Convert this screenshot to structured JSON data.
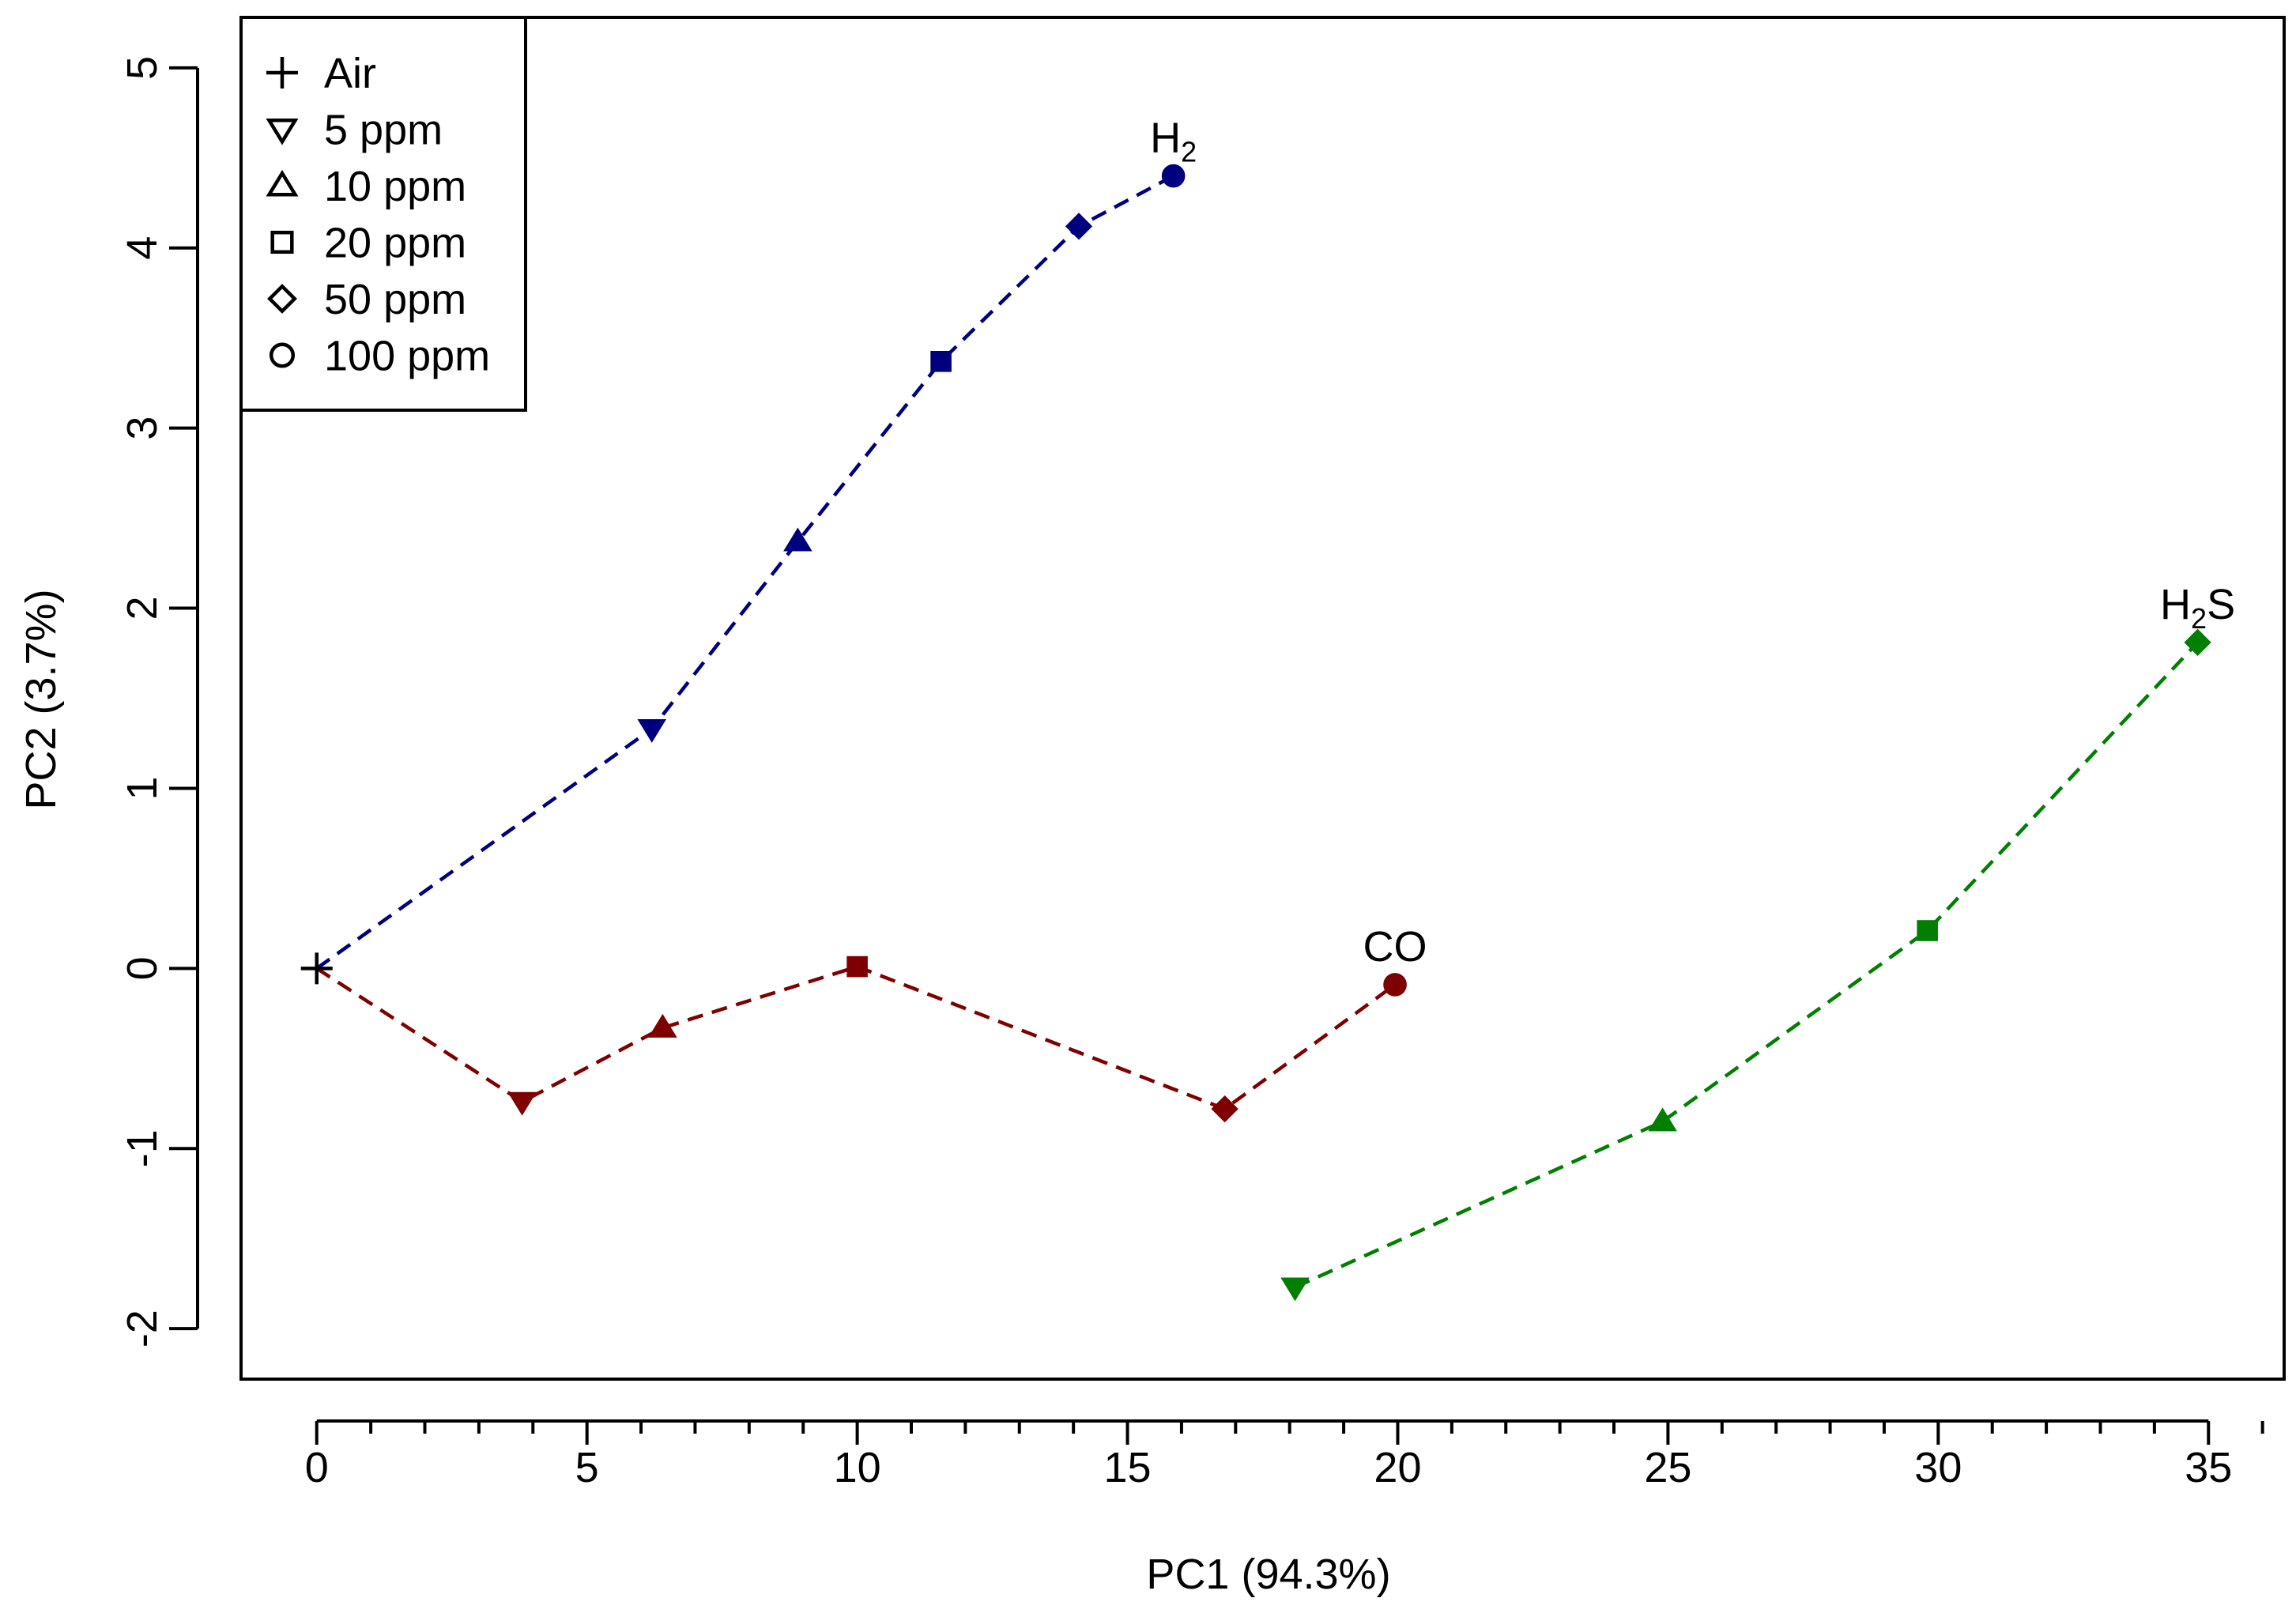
{
  "chart_data": {
    "type": "scatter",
    "title": "",
    "xlabel": "PC1 (94.3%)",
    "ylabel": "PC2 (3.7%)",
    "xlim": [
      -1.4,
      36.4
    ],
    "ylim": [
      -2.28,
      5.28
    ],
    "xticks": [
      0,
      5,
      10,
      15,
      20,
      25,
      30,
      35
    ],
    "yticks": [
      -2,
      -1,
      0,
      1,
      2,
      3,
      4,
      5
    ],
    "xminor_step": 1,
    "x_tick_labels": [
      "0",
      "5",
      "10",
      "15",
      "20",
      "25",
      "30",
      "35"
    ],
    "y_tick_labels": [
      "-2",
      "-1",
      "0",
      "1",
      "2",
      "3",
      "4",
      "5"
    ],
    "legend": {
      "position": "top-left",
      "entries": [
        {
          "label": "Air",
          "marker": "plus"
        },
        {
          "label": "5 ppm",
          "marker": "triangle-down"
        },
        {
          "label": "10 ppm",
          "marker": "triangle-up"
        },
        {
          "label": "20 ppm",
          "marker": "square"
        },
        {
          "label": "50 ppm",
          "marker": "diamond"
        },
        {
          "label": "100 ppm",
          "marker": "circle"
        }
      ]
    },
    "air_point": {
      "label": "Air",
      "x": 0,
      "y": 0,
      "marker": "plus",
      "color": "#000000"
    },
    "series": [
      {
        "name": "H2",
        "label_main": "H",
        "label_sub": "2",
        "label_tail": "",
        "color": "#00007f",
        "points": [
          {
            "x": 0,
            "y": 0,
            "marker": "none"
          },
          {
            "x": 6.2,
            "y": 1.33,
            "marker": "triangle-down"
          },
          {
            "x": 8.9,
            "y": 2.37,
            "marker": "triangle-up"
          },
          {
            "x": 11.55,
            "y": 3.37,
            "marker": "square"
          },
          {
            "x": 14.1,
            "y": 4.12,
            "marker": "diamond"
          },
          {
            "x": 15.85,
            "y": 4.4,
            "marker": "circle"
          }
        ]
      },
      {
        "name": "CO",
        "label_main": "CO",
        "label_sub": "",
        "label_tail": "",
        "color": "#7f0000",
        "points": [
          {
            "x": 0,
            "y": 0,
            "marker": "none"
          },
          {
            "x": 3.8,
            "y": -0.74,
            "marker": "triangle-down"
          },
          {
            "x": 6.4,
            "y": -0.33,
            "marker": "triangle-up"
          },
          {
            "x": 10.0,
            "y": 0.01,
            "marker": "square"
          },
          {
            "x": 16.8,
            "y": -0.78,
            "marker": "diamond"
          },
          {
            "x": 19.95,
            "y": -0.09,
            "marker": "circle"
          }
        ]
      },
      {
        "name": "H2S",
        "label_main": "H",
        "label_sub": "2",
        "label_tail": "S",
        "color": "#007f00",
        "points": [
          {
            "x": 18.1,
            "y": -1.77,
            "marker": "triangle-down"
          },
          {
            "x": 24.9,
            "y": -0.85,
            "marker": "triangle-up"
          },
          {
            "x": 29.8,
            "y": 0.21,
            "marker": "square"
          },
          {
            "x": 34.8,
            "y": 1.81,
            "marker": "diamond"
          }
        ]
      }
    ]
  }
}
